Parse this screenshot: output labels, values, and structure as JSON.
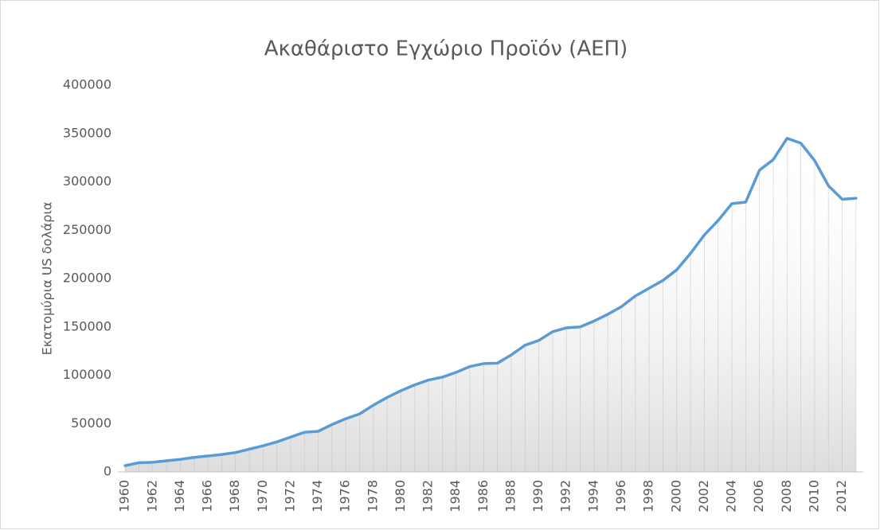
{
  "chart_data": {
    "type": "line",
    "title": "Ακαθάριστο Εγχώριο Προϊόν (ΑΕΠ)",
    "y_label": "Εκατομύρια US δολάρια",
    "categories": [
      "1960",
      null,
      "1962",
      null,
      "1964",
      null,
      "1966",
      null,
      "1968",
      null,
      "1970",
      null,
      "1972",
      null,
      "1974",
      null,
      "1976",
      null,
      "1978",
      null,
      "1980",
      null,
      "1982",
      null,
      "1984",
      null,
      "1986",
      null,
      "1988",
      null,
      "1990",
      null,
      "1992",
      null,
      "1994",
      null,
      "1996",
      null,
      "1998",
      null,
      "2000",
      null,
      "2002",
      null,
      "2004",
      null,
      "2006",
      null,
      "2008",
      null,
      "2010",
      null,
      "2012",
      null
    ],
    "values": [
      6500,
      9500,
      10000,
      11500,
      13000,
      15000,
      16500,
      18000,
      20000,
      23500,
      27000,
      31000,
      36000,
      41000,
      42000,
      49000,
      55000,
      60000,
      69000,
      77000,
      84000,
      90000,
      95000,
      98000,
      103000,
      109000,
      112000,
      112500,
      121000,
      131000,
      136000,
      145000,
      149000,
      150000,
      156000,
      163000,
      171000,
      182000,
      190000,
      198000,
      209000,
      226000,
      245000,
      260000,
      277500,
      279000,
      312000,
      323000,
      345000,
      340000,
      322000,
      296000,
      282000,
      283000
    ],
    "color": "#5b9bd5",
    "ylim": [
      0,
      400000
    ],
    "yticks": [
      0,
      50000,
      100000,
      150000,
      200000,
      250000,
      300000,
      350000,
      400000
    ],
    "grid": false,
    "drop_lines": true
  }
}
